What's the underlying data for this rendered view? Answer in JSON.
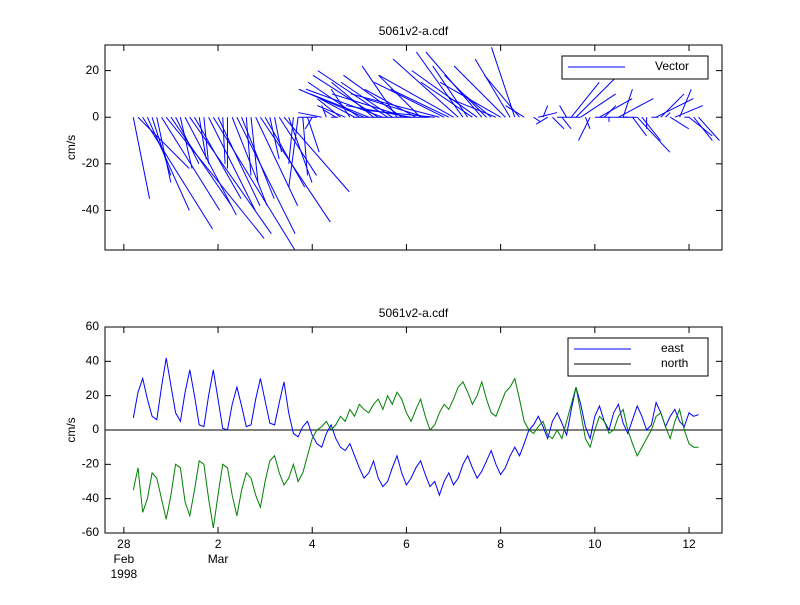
{
  "chart_data": [
    {
      "type": "feather",
      "title": "5061v2-a.cdf",
      "y_label": "cm/s",
      "x": [
        0.2,
        0.3,
        0.4,
        0.5,
        0.6,
        0.7,
        0.8,
        0.9,
        1.0,
        1.1,
        1.2,
        1.3,
        1.4,
        1.5,
        1.6,
        1.7,
        1.8,
        1.9,
        2.0,
        2.1,
        2.2,
        2.3,
        2.4,
        2.5,
        2.6,
        2.7,
        2.8,
        2.9,
        3.0,
        3.1,
        3.2,
        3.3,
        3.4,
        3.5,
        3.6,
        3.7,
        3.8,
        3.9,
        4.0,
        4.1,
        4.2,
        4.3,
        4.4,
        4.5,
        4.6,
        4.7,
        4.8,
        4.9,
        5.0,
        5.1,
        5.2,
        5.3,
        5.4,
        5.5,
        5.6,
        5.7,
        5.8,
        5.9,
        6.0,
        6.1,
        6.2,
        6.3,
        6.4,
        6.5,
        6.6,
        6.7,
        6.8,
        6.9,
        7.0,
        7.1,
        7.2,
        7.3,
        7.4,
        7.5,
        7.6,
        7.7,
        7.8,
        7.9,
        8.0,
        8.1,
        8.2,
        8.3,
        8.4,
        8.5,
        8.6,
        8.7,
        8.8,
        8.9,
        9.0,
        9.1,
        9.2,
        9.3,
        9.4,
        9.5,
        9.6,
        9.7,
        9.8,
        9.9,
        10.0,
        10.1,
        10.2,
        10.3,
        10.4,
        10.5,
        10.6,
        10.7,
        10.8,
        10.9,
        11.0,
        11.1,
        11.2,
        11.3,
        11.4,
        11.5,
        11.6,
        11.7,
        11.8,
        11.9,
        12.0,
        12.1,
        12.2
      ],
      "series": [
        {
          "name": "Vector",
          "color": "#0000ff",
          "u": [
            7,
            22,
            30,
            18,
            8,
            6,
            25,
            42,
            26,
            10,
            5,
            22,
            35,
            20,
            3,
            2,
            20,
            35,
            18,
            1,
            0,
            15,
            25,
            14,
            2,
            3,
            18,
            30,
            17,
            4,
            3,
            16,
            28,
            10,
            -2,
            -4,
            2,
            5,
            -3,
            -8,
            -10,
            -2,
            3,
            -5,
            -10,
            -12,
            -8,
            -15,
            -22,
            -28,
            -25,
            -18,
            -28,
            -33,
            -30,
            -22,
            -15,
            -25,
            -32,
            -28,
            -22,
            -18,
            -26,
            -33,
            -30,
            -38,
            -30,
            -25,
            -32,
            -28,
            -20,
            -15,
            -22,
            -28,
            -24,
            -18,
            -12,
            -20,
            -26,
            -22,
            -15,
            -10,
            -15,
            -8,
            0,
            3,
            8,
            2,
            -5,
            5,
            10,
            4,
            -3,
            12,
            25,
            15,
            2,
            -5,
            8,
            14,
            5,
            0,
            10,
            15,
            4,
            -2,
            6,
            14,
            8,
            0,
            3,
            16,
            10,
            2,
            8,
            12,
            5,
            2,
            10,
            8,
            9
          ],
          "v": [
            -35,
            -22,
            -48,
            -40,
            -25,
            -28,
            -40,
            -52,
            -38,
            -20,
            -22,
            -42,
            -50,
            -35,
            -18,
            -20,
            -40,
            -57,
            -38,
            -20,
            -22,
            -38,
            -50,
            -35,
            -25,
            -28,
            -38,
            -45,
            -30,
            -18,
            -15,
            -25,
            -32,
            -28,
            -20,
            -30,
            -25,
            -15,
            -5,
            0,
            2,
            5,
            0,
            3,
            8,
            5,
            12,
            8,
            15,
            12,
            10,
            15,
            18,
            12,
            20,
            15,
            22,
            18,
            10,
            5,
            12,
            18,
            8,
            0,
            3,
            10,
            15,
            12,
            18,
            25,
            28,
            22,
            15,
            20,
            28,
            18,
            10,
            8,
            15,
            22,
            25,
            30,
            18,
            5,
            0,
            -2,
            2,
            5,
            -3,
            -5,
            0,
            -5,
            5,
            15,
            25,
            10,
            -5,
            -10,
            0,
            8,
            5,
            -2,
            0,
            8,
            12,
            0,
            -8,
            -15,
            -10,
            -5,
            0,
            8,
            10,
            2,
            -5,
            5,
            12,
            0,
            -8,
            -10,
            -10
          ]
        }
      ],
      "xlim": [
        -0.4,
        12.7
      ],
      "xticks": [
        0,
        2,
        4,
        6,
        8,
        10,
        12
      ],
      "ylim": [
        -57,
        31
      ],
      "yticks": [
        -40,
        -20,
        0,
        20
      ],
      "legend": "upper right"
    },
    {
      "type": "line",
      "title": "5061v2-a.cdf",
      "y_label": "cm/s",
      "x": [
        0.2,
        0.3,
        0.4,
        0.5,
        0.6,
        0.7,
        0.8,
        0.9,
        1.0,
        1.1,
        1.2,
        1.3,
        1.4,
        1.5,
        1.6,
        1.7,
        1.8,
        1.9,
        2.0,
        2.1,
        2.2,
        2.3,
        2.4,
        2.5,
        2.6,
        2.7,
        2.8,
        2.9,
        3.0,
        3.1,
        3.2,
        3.3,
        3.4,
        3.5,
        3.6,
        3.7,
        3.8,
        3.9,
        4.0,
        4.1,
        4.2,
        4.3,
        4.4,
        4.5,
        4.6,
        4.7,
        4.8,
        4.9,
        5.0,
        5.1,
        5.2,
        5.3,
        5.4,
        5.5,
        5.6,
        5.7,
        5.8,
        5.9,
        6.0,
        6.1,
        6.2,
        6.3,
        6.4,
        6.5,
        6.6,
        6.7,
        6.8,
        6.9,
        7.0,
        7.1,
        7.2,
        7.3,
        7.4,
        7.5,
        7.6,
        7.7,
        7.8,
        7.9,
        8.0,
        8.1,
        8.2,
        8.3,
        8.4,
        8.5,
        8.6,
        8.7,
        8.8,
        8.9,
        9.0,
        9.1,
        9.2,
        9.3,
        9.4,
        9.5,
        9.6,
        9.7,
        9.8,
        9.9,
        10.0,
        10.1,
        10.2,
        10.3,
        10.4,
        10.5,
        10.6,
        10.7,
        10.8,
        10.9,
        11.0,
        11.1,
        11.2,
        11.3,
        11.4,
        11.5,
        11.6,
        11.7,
        11.8,
        11.9,
        12.0,
        12.1,
        12.2
      ],
      "series": [
        {
          "name": "east",
          "color": "#0000ff",
          "legend_color": "#0000ff",
          "values": [
            7,
            22,
            30,
            18,
            8,
            6,
            25,
            42,
            26,
            10,
            5,
            22,
            35,
            20,
            3,
            2,
            20,
            35,
            18,
            1,
            0,
            15,
            25,
            14,
            2,
            3,
            18,
            30,
            17,
            4,
            3,
            16,
            28,
            10,
            -2,
            -4,
            2,
            5,
            -3,
            -8,
            -10,
            -2,
            3,
            -5,
            -10,
            -12,
            -8,
            -15,
            -22,
            -28,
            -25,
            -18,
            -28,
            -33,
            -30,
            -22,
            -15,
            -25,
            -32,
            -28,
            -22,
            -18,
            -26,
            -33,
            -30,
            -38,
            -30,
            -25,
            -32,
            -28,
            -20,
            -15,
            -22,
            -28,
            -24,
            -18,
            -12,
            -20,
            -26,
            -22,
            -15,
            -10,
            -15,
            -8,
            0,
            3,
            8,
            2,
            -5,
            5,
            10,
            4,
            -3,
            12,
            25,
            15,
            2,
            -5,
            8,
            14,
            5,
            0,
            10,
            15,
            4,
            -2,
            6,
            14,
            8,
            0,
            3,
            16,
            10,
            2,
            8,
            12,
            5,
            2,
            10,
            8,
            9
          ]
        },
        {
          "name": "north",
          "color": "#008000",
          "legend_color": "#000000",
          "values": [
            -35,
            -22,
            -48,
            -40,
            -25,
            -28,
            -40,
            -52,
            -38,
            -20,
            -22,
            -42,
            -50,
            -35,
            -18,
            -20,
            -40,
            -57,
            -38,
            -20,
            -22,
            -38,
            -50,
            -35,
            -25,
            -28,
            -38,
            -45,
            -30,
            -18,
            -15,
            -25,
            -32,
            -28,
            -20,
            -30,
            -25,
            -15,
            -5,
            0,
            2,
            5,
            0,
            3,
            8,
            5,
            12,
            8,
            15,
            12,
            10,
            15,
            18,
            12,
            20,
            15,
            22,
            18,
            10,
            5,
            12,
            18,
            8,
            0,
            3,
            10,
            15,
            12,
            18,
            25,
            28,
            22,
            15,
            20,
            28,
            18,
            10,
            8,
            15,
            22,
            25,
            30,
            18,
            5,
            0,
            -2,
            2,
            5,
            -3,
            -5,
            0,
            -5,
            5,
            15,
            25,
            10,
            -5,
            -10,
            0,
            8,
            5,
            -2,
            0,
            8,
            12,
            0,
            -8,
            -15,
            -10,
            -5,
            0,
            8,
            10,
            2,
            -5,
            5,
            12,
            0,
            -8,
            -10,
            -10
          ]
        }
      ],
      "xlim": [
        -0.4,
        12.7
      ],
      "xticks": [
        {
          "value": 0,
          "label": "28"
        },
        2,
        4,
        6,
        8,
        10,
        12
      ],
      "xtick_months": [
        {
          "value": 0,
          "label": "Feb"
        },
        {
          "value": 2,
          "label": "Mar"
        }
      ],
      "xtick_year": {
        "value": 0,
        "label": "1998"
      },
      "ylim": [
        -60,
        60
      ],
      "yticks": [
        -60,
        -40,
        -20,
        0,
        20,
        40,
        60
      ],
      "zero_line": true,
      "legend": "upper right"
    }
  ]
}
